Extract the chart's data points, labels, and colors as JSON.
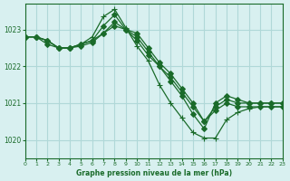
{
  "bg_color": "#d8f0f0",
  "grid_color": "#b0d8d8",
  "line_color": "#1a6b2a",
  "title": "Graphe pression niveau de la mer (hPa)",
  "xlim": [
    0,
    23
  ],
  "ylim": [
    1019.5,
    1023.7
  ],
  "yticks": [
    1020,
    1021,
    1022,
    1023
  ],
  "xticks": [
    0,
    1,
    2,
    3,
    4,
    5,
    6,
    7,
    8,
    9,
    10,
    11,
    12,
    13,
    14,
    15,
    16,
    17,
    18,
    19,
    20,
    21,
    22,
    23
  ],
  "series": [
    {
      "x": [
        0,
        1,
        2,
        3,
        4,
        5,
        6,
        7,
        8,
        9,
        10,
        11,
        12,
        13,
        14,
        15,
        16,
        17,
        18,
        19,
        20,
        21,
        22,
        23
      ],
      "y": [
        1022.8,
        1022.8,
        1022.7,
        1022.5,
        1022.5,
        1022.6,
        1022.7,
        1023.1,
        1023.4,
        1023.0,
        1022.9,
        1022.5,
        1022.1,
        1021.8,
        1021.4,
        1021.0,
        1020.5,
        1020.8,
        1021.0,
        1020.9,
        1020.9,
        1020.9,
        1020.9,
        1020.9
      ],
      "marker": "D",
      "markersize": 3,
      "filled": true
    },
    {
      "x": [
        0,
        1,
        2,
        3,
        4,
        5,
        6,
        7,
        8,
        9,
        10,
        11,
        12,
        13,
        14,
        15,
        16,
        17,
        18,
        19,
        20,
        21,
        22,
        23
      ],
      "y": [
        1022.8,
        1022.8,
        1022.7,
        1022.5,
        1022.5,
        1022.6,
        1022.8,
        1023.35,
        1023.55,
        1023.05,
        1022.55,
        1022.15,
        1021.5,
        1021.0,
        1020.6,
        1020.2,
        1020.05,
        1020.05,
        1020.55,
        1020.75,
        1020.85,
        1020.9,
        1020.9,
        1020.9
      ],
      "marker": "+",
      "markersize": 5,
      "filled": false
    },
    {
      "x": [
        0,
        1,
        2,
        3,
        4,
        5,
        6,
        7,
        8,
        9,
        10,
        11,
        12,
        13,
        14,
        15,
        16,
        17,
        18,
        19,
        20,
        21,
        22,
        23
      ],
      "y": [
        1022.8,
        1022.8,
        1022.6,
        1022.5,
        1022.5,
        1022.55,
        1022.65,
        1022.9,
        1023.2,
        1023.0,
        1022.7,
        1022.3,
        1022.0,
        1021.6,
        1021.2,
        1020.7,
        1020.3,
        1021.0,
        1021.2,
        1021.1,
        1021.0,
        1021.0,
        1021.0,
        1021.0
      ],
      "marker": "D",
      "markersize": 3,
      "filled": true
    },
    {
      "x": [
        0,
        1,
        2,
        3,
        4,
        5,
        6,
        7,
        8,
        9,
        10,
        11,
        12,
        13,
        14,
        15,
        16,
        17,
        18,
        19,
        20,
        21,
        22,
        23
      ],
      "y": [
        1022.8,
        1022.8,
        1022.7,
        1022.5,
        1022.5,
        1022.6,
        1022.7,
        1022.9,
        1023.1,
        1023.0,
        1022.8,
        1022.4,
        1022.0,
        1021.7,
        1021.3,
        1020.9,
        1020.5,
        1020.9,
        1021.1,
        1021.0,
        1021.0,
        1021.0,
        1021.0,
        1021.0
      ],
      "marker": "D",
      "markersize": 3,
      "filled": true
    }
  ]
}
